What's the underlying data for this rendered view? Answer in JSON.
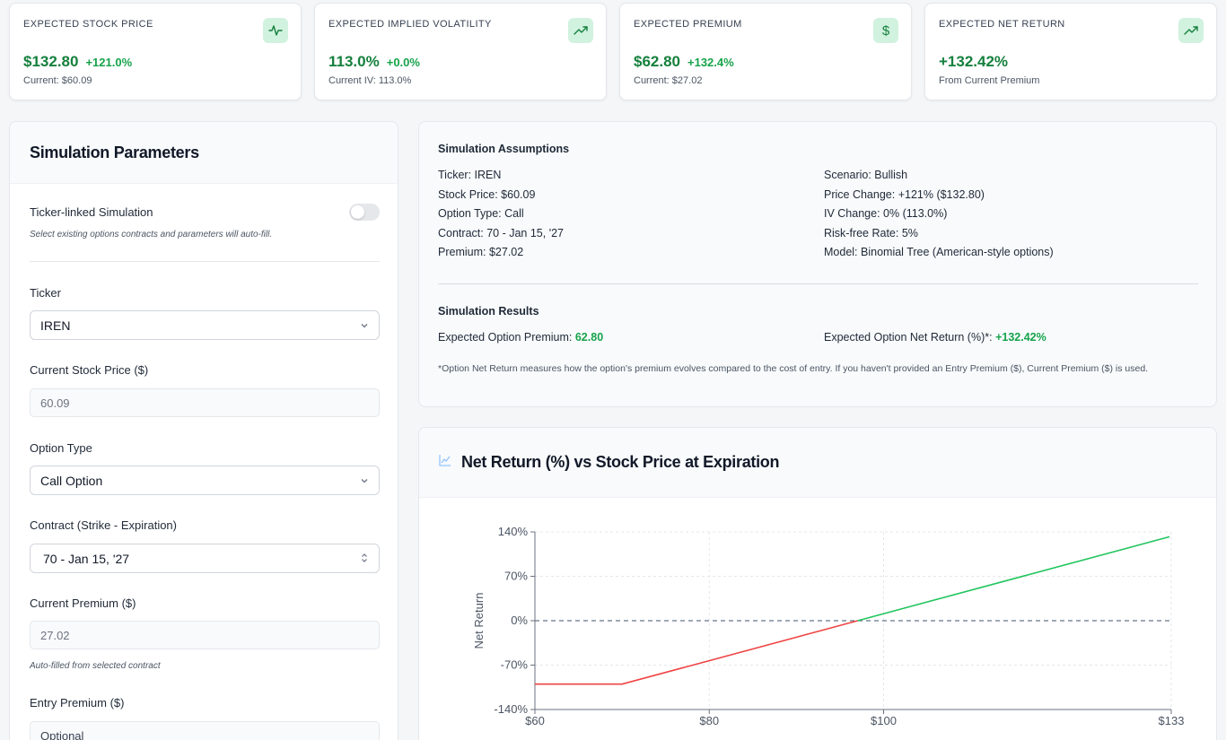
{
  "cards": [
    {
      "title": "EXPECTED STOCK PRICE",
      "value": "$132.80",
      "change": "+121.0%",
      "sub": "Current: $60.09",
      "icon": "pulse-icon"
    },
    {
      "title": "EXPECTED IMPLIED VOLATILITY",
      "value": "113.0%",
      "change": "+0.0%",
      "sub": "Current IV: 113.0%",
      "icon": "trend-up-icon"
    },
    {
      "title": "EXPECTED PREMIUM",
      "value": "$62.80",
      "change": "+132.4%",
      "sub": "Current: $27.02",
      "icon": "dollar-icon"
    },
    {
      "title": "EXPECTED NET RETURN",
      "value": "+132.42%",
      "change": "",
      "sub": "From Current Premium",
      "icon": "trend-up-icon"
    }
  ],
  "params": {
    "title": "Simulation Parameters",
    "ticker_linked_label": "Ticker-linked Simulation",
    "ticker_linked_hint": "Select existing options contracts and parameters will auto-fill.",
    "ticker_label": "Ticker",
    "ticker_value": "IREN",
    "stock_price_label": "Current Stock Price ($)",
    "stock_price_value": "60.09",
    "option_type_label": "Option Type",
    "option_type_value": "Call Option",
    "contract_label": "Contract (Strike - Expiration)",
    "contract_value": "70 - Jan 15, '27",
    "premium_label": "Current Premium ($)",
    "premium_value": "27.02",
    "premium_hint": "Auto-filled from selected contract",
    "entry_label": "Entry Premium ($)",
    "entry_placeholder": "Optional"
  },
  "assumptions": {
    "title": "Simulation Assumptions",
    "left": [
      {
        "k": "Ticker:",
        "v": "IREN"
      },
      {
        "k": "Stock Price:",
        "v": "$60.09"
      },
      {
        "k": "Option Type:",
        "v": "Call"
      },
      {
        "k": "Contract:",
        "v": "70 - Jan 15, '27"
      },
      {
        "k": "Premium:",
        "v": "$27.02"
      }
    ],
    "right": [
      {
        "k": "Scenario:",
        "v": "Bullish"
      },
      {
        "k": "Price Change:",
        "v": "+121% ($132.80)"
      },
      {
        "k": "IV Change:",
        "v": "0% (113.0%)"
      },
      {
        "k": "Risk-free Rate:",
        "v": "5%"
      },
      {
        "k": "Model:",
        "v": "Binomial Tree (American-style options)"
      }
    ],
    "results_title": "Simulation Results",
    "result_premium_label": "Expected Option Premium:",
    "result_premium_value": "62.80",
    "result_return_label": "Expected Option Net Return (%)*:",
    "result_return_value": "+132.42%",
    "footnote": "*Option Net Return measures how the option's premium evolves compared to the cost of entry. If you haven't provided an Entry Premium ($), Current Premium ($) is used."
  },
  "chart_panel": {
    "title": "Net Return (%) vs Stock Price at Expiration"
  },
  "chart_data": {
    "type": "line",
    "title": "Net Return (%) vs Stock Price at Expiration",
    "xlabel": "",
    "ylabel": "Net Return",
    "xlim": [
      60,
      133
    ],
    "ylim": [
      -140,
      140
    ],
    "x_ticks": [
      60,
      80,
      100,
      133
    ],
    "x_tick_labels": [
      "$60",
      "$80",
      "$100",
      "$133"
    ],
    "y_ticks": [
      140,
      70,
      0,
      -70,
      -140
    ],
    "y_tick_labels": [
      "140%",
      "70%",
      "0%",
      "-70%",
      "-140%"
    ],
    "series": [
      {
        "name": "loss",
        "color": "#ef4444",
        "x": [
          60,
          70,
          97.02
        ],
        "y": [
          -100,
          -100,
          0
        ]
      },
      {
        "name": "profit",
        "color": "#22c55e",
        "x": [
          97.02,
          132.8
        ],
        "y": [
          0,
          132.42
        ]
      }
    ],
    "reference_line": {
      "y": 0,
      "style": "dashed"
    }
  }
}
